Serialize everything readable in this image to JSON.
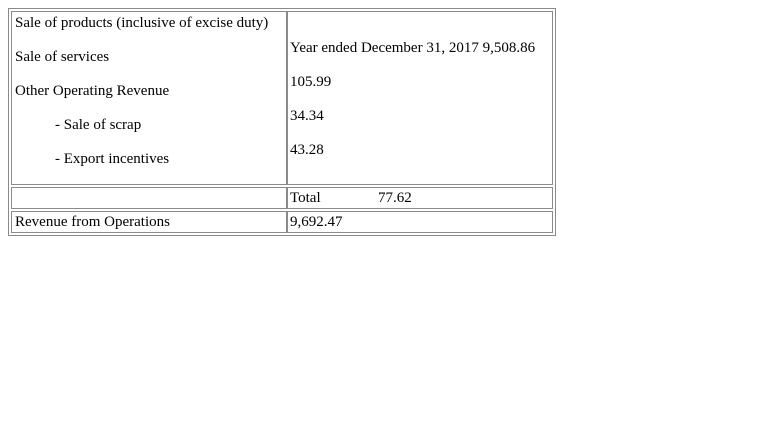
{
  "table": {
    "left_lines": [
      "Sale of products (inclusive of excise duty)",
      "Sale of services",
      "Other Operating Revenue",
      "- Sale of scrap",
      "- Export incentives"
    ],
    "right_lines": [
      "Year ended December 31, 2017 9,508.86",
      "105.99",
      "34.34",
      "43.28"
    ],
    "total_row": {
      "label": "Total",
      "value": "77.62"
    },
    "revenue_row": {
      "label": "Revenue from Operations",
      "value": "9,692.47"
    }
  }
}
